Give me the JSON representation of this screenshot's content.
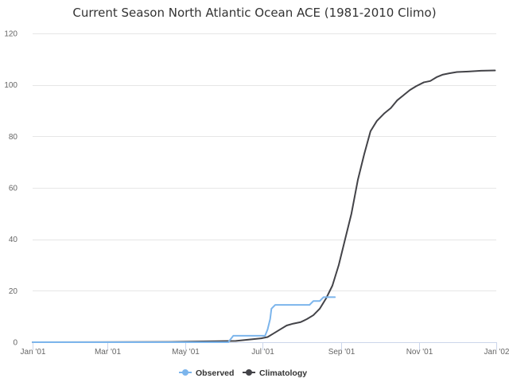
{
  "chart_data": {
    "type": "line",
    "title": "Current Season North Atlantic Ocean ACE (1981-2010 Climo)",
    "xlabel": "",
    "ylabel": "",
    "x_axis": {
      "type": "date",
      "range": [
        "2001-01-01",
        "2002-01-01"
      ],
      "tick_labels": [
        "Jan '01",
        "Mar '01",
        "May '01",
        "Jul '01",
        "Sep '01",
        "Nov '01",
        "Jan '02"
      ],
      "tick_dates": [
        "2001-01-01",
        "2001-03-01",
        "2001-05-01",
        "2001-07-01",
        "2001-09-01",
        "2001-11-01",
        "2002-01-01"
      ]
    },
    "y_axis": {
      "range": [
        0,
        120
      ],
      "ticks": [
        0,
        20,
        40,
        60,
        80,
        100,
        120
      ]
    },
    "grid": true,
    "legend_position": "bottom",
    "series": [
      {
        "name": "Observed",
        "color": "#7cb5ec",
        "points": [
          [
            "2001-01-01",
            0
          ],
          [
            "2001-06-04",
            0
          ],
          [
            "2001-06-08",
            2.5
          ],
          [
            "2001-06-30",
            2.5
          ],
          [
            "2001-07-03",
            2.5
          ],
          [
            "2001-07-05",
            5
          ],
          [
            "2001-07-07",
            9
          ],
          [
            "2001-07-08",
            13
          ],
          [
            "2001-07-10",
            14
          ],
          [
            "2001-07-11",
            14.5
          ],
          [
            "2001-08-07",
            14.5
          ],
          [
            "2001-08-10",
            16
          ],
          [
            "2001-08-15",
            16
          ],
          [
            "2001-08-18",
            17.5
          ],
          [
            "2001-08-27",
            17.5
          ]
        ]
      },
      {
        "name": "Climatology",
        "color": "#434348",
        "points": [
          [
            "2001-01-01",
            0
          ],
          [
            "2001-04-20",
            0.1
          ],
          [
            "2001-05-15",
            0.3
          ],
          [
            "2001-06-10",
            0.5
          ],
          [
            "2001-06-20",
            1
          ],
          [
            "2001-06-30",
            1.5
          ],
          [
            "2001-07-05",
            2
          ],
          [
            "2001-07-10",
            3.5
          ],
          [
            "2001-07-15",
            5
          ],
          [
            "2001-07-20",
            6.5
          ],
          [
            "2001-07-25",
            7.2
          ],
          [
            "2001-07-31",
            7.8
          ],
          [
            "2001-08-05",
            9
          ],
          [
            "2001-08-10",
            10.5
          ],
          [
            "2001-08-15",
            13
          ],
          [
            "2001-08-20",
            17
          ],
          [
            "2001-08-25",
            22
          ],
          [
            "2001-08-30",
            30
          ],
          [
            "2001-09-04",
            40
          ],
          [
            "2001-09-09",
            50
          ],
          [
            "2001-09-14",
            63
          ],
          [
            "2001-09-19",
            73
          ],
          [
            "2001-09-24",
            82
          ],
          [
            "2001-09-29",
            86
          ],
          [
            "2001-10-05",
            89
          ],
          [
            "2001-10-10",
            91
          ],
          [
            "2001-10-15",
            94
          ],
          [
            "2001-10-20",
            96
          ],
          [
            "2001-10-25",
            98
          ],
          [
            "2001-10-30",
            99.5
          ],
          [
            "2001-11-05",
            101
          ],
          [
            "2001-11-10",
            101.5
          ],
          [
            "2001-11-15",
            103
          ],
          [
            "2001-11-20",
            104
          ],
          [
            "2001-11-25",
            104.5
          ],
          [
            "2001-12-01",
            105
          ],
          [
            "2001-12-10",
            105.2
          ],
          [
            "2001-12-20",
            105.5
          ],
          [
            "2001-12-31",
            105.6
          ]
        ]
      }
    ]
  }
}
